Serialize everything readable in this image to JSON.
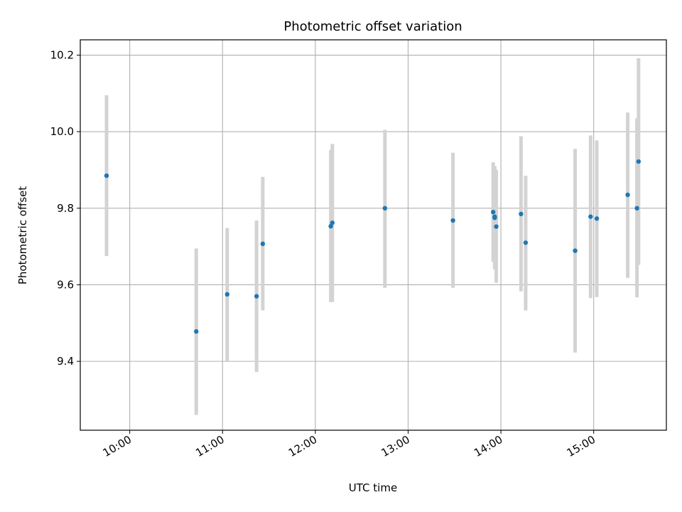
{
  "chart_data": {
    "type": "scatter",
    "title": "Photometric offset variation",
    "xlabel": "UTC time",
    "ylabel": "Photometric offset",
    "x_unit": "UTC time (HH:MM)",
    "xlim": [
      "09:28",
      "15:47"
    ],
    "ylim": [
      9.22,
      10.24
    ],
    "x_ticks": [
      "10:00",
      "11:00",
      "12:00",
      "13:00",
      "14:00",
      "15:00"
    ],
    "y_ticks": [
      "9.4",
      "9.6",
      "9.8",
      "10.0",
      "10.2"
    ],
    "grid": true,
    "marker_color": "#1f77b4",
    "errorbar_color": "#d3d3d3",
    "series": [
      {
        "points": [
          {
            "x": "09:45",
            "y": 9.885,
            "ylow": 9.675,
            "yhigh": 10.095
          },
          {
            "x": "10:43",
            "y": 9.478,
            "ylow": 9.26,
            "yhigh": 9.695
          },
          {
            "x": "11:03",
            "y": 9.575,
            "ylow": 9.4,
            "yhigh": 9.748
          },
          {
            "x": "11:22",
            "y": 9.57,
            "ylow": 9.372,
            "yhigh": 9.768
          },
          {
            "x": "11:26",
            "y": 9.707,
            "ylow": 9.533,
            "yhigh": 9.882
          },
          {
            "x": "12:10",
            "y": 9.753,
            "ylow": 9.555,
            "yhigh": 9.952
          },
          {
            "x": "12:11",
            "y": 9.762,
            "ylow": 9.555,
            "yhigh": 9.968
          },
          {
            "x": "12:45",
            "y": 9.8,
            "ylow": 9.592,
            "yhigh": 10.005
          },
          {
            "x": "13:29",
            "y": 9.768,
            "ylow": 9.592,
            "yhigh": 9.945
          },
          {
            "x": "13:55",
            "y": 9.79,
            "ylow": 9.66,
            "yhigh": 9.92
          },
          {
            "x": "13:56",
            "y": 9.775,
            "ylow": 9.64,
            "yhigh": 9.91
          },
          {
            "x": "13:56",
            "y": 9.778,
            "ylow": 9.65,
            "yhigh": 9.905
          },
          {
            "x": "13:57",
            "y": 9.752,
            "ylow": 9.605,
            "yhigh": 9.9
          },
          {
            "x": "14:13",
            "y": 9.785,
            "ylow": 9.583,
            "yhigh": 9.988
          },
          {
            "x": "14:16",
            "y": 9.71,
            "ylow": 9.533,
            "yhigh": 9.885
          },
          {
            "x": "14:48",
            "y": 9.689,
            "ylow": 9.423,
            "yhigh": 9.955
          },
          {
            "x": "14:58",
            "y": 9.778,
            "ylow": 9.565,
            "yhigh": 9.99
          },
          {
            "x": "15:02",
            "y": 9.773,
            "ylow": 9.568,
            "yhigh": 9.977
          },
          {
            "x": "15:22",
            "y": 9.835,
            "ylow": 9.618,
            "yhigh": 10.05
          },
          {
            "x": "15:28",
            "y": 9.8,
            "ylow": 9.567,
            "yhigh": 10.035
          },
          {
            "x": "15:29",
            "y": 9.922,
            "ylow": 9.652,
            "yhigh": 10.192
          }
        ]
      }
    ]
  }
}
